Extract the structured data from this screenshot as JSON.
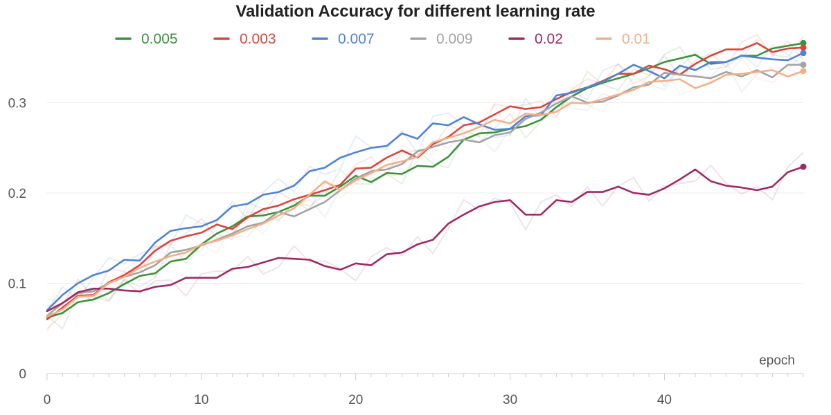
{
  "chart_data": {
    "type": "line",
    "title": "Validation Accuracy for different learning rate",
    "xlabel": "epoch",
    "ylabel": "",
    "xlim": [
      0,
      49
    ],
    "ylim": [
      0,
      0.38
    ],
    "x_ticks": [
      0,
      10,
      20,
      30,
      40
    ],
    "x_tick_labels": [
      "0",
      "10",
      "20",
      "30",
      "40"
    ],
    "y_ticks": [
      0,
      0.1,
      0.2,
      0.3
    ],
    "y_tick_labels": [
      "0",
      "0.1",
      "0.2",
      "0.3"
    ],
    "grid": true,
    "legend_position": "top-center",
    "x": [
      0,
      1,
      2,
      3,
      4,
      5,
      6,
      7,
      8,
      9,
      10,
      11,
      12,
      13,
      14,
      15,
      16,
      17,
      18,
      19,
      20,
      21,
      22,
      23,
      24,
      25,
      26,
      27,
      28,
      29,
      30,
      31,
      32,
      33,
      34,
      35,
      36,
      37,
      38,
      39,
      40,
      41,
      42,
      43,
      44,
      45,
      46,
      47,
      48,
      49
    ],
    "series": [
      {
        "name": "0.005",
        "color": "#3a923a",
        "values": [
          0.062,
          0.067,
          0.079,
          0.082,
          0.089,
          0.099,
          0.108,
          0.111,
          0.124,
          0.127,
          0.143,
          0.155,
          0.163,
          0.174,
          0.175,
          0.179,
          0.186,
          0.197,
          0.197,
          0.207,
          0.219,
          0.212,
          0.222,
          0.221,
          0.23,
          0.229,
          0.24,
          0.259,
          0.266,
          0.267,
          0.271,
          0.274,
          0.281,
          0.295,
          0.307,
          0.316,
          0.322,
          0.327,
          0.332,
          0.338,
          0.345,
          0.349,
          0.353,
          0.343,
          0.345,
          0.352,
          0.352,
          0.36,
          0.363,
          0.366
        ]
      },
      {
        "name": "0.003",
        "color": "#d9453d",
        "values": [
          0.06,
          0.073,
          0.086,
          0.087,
          0.101,
          0.109,
          0.12,
          0.136,
          0.147,
          0.152,
          0.156,
          0.165,
          0.16,
          0.173,
          0.182,
          0.186,
          0.193,
          0.198,
          0.203,
          0.209,
          0.227,
          0.228,
          0.239,
          0.247,
          0.239,
          0.254,
          0.262,
          0.275,
          0.278,
          0.287,
          0.296,
          0.293,
          0.295,
          0.304,
          0.312,
          0.317,
          0.324,
          0.332,
          0.332,
          0.341,
          0.337,
          0.331,
          0.343,
          0.352,
          0.359,
          0.359,
          0.366,
          0.356,
          0.36,
          0.361
        ]
      },
      {
        "name": "0.007",
        "color": "#4f83d6",
        "values": [
          0.07,
          0.087,
          0.1,
          0.109,
          0.114,
          0.126,
          0.125,
          0.145,
          0.158,
          0.161,
          0.163,
          0.17,
          0.185,
          0.188,
          0.198,
          0.201,
          0.208,
          0.224,
          0.228,
          0.239,
          0.245,
          0.25,
          0.252,
          0.266,
          0.26,
          0.277,
          0.275,
          0.284,
          0.276,
          0.27,
          0.271,
          0.285,
          0.286,
          0.308,
          0.311,
          0.317,
          0.323,
          0.332,
          0.342,
          0.335,
          0.327,
          0.341,
          0.336,
          0.345,
          0.345,
          0.352,
          0.35,
          0.348,
          0.347,
          0.355
        ]
      },
      {
        "name": "0.009",
        "color": "#a3a3a3",
        "values": [
          0.064,
          0.078,
          0.089,
          0.091,
          0.1,
          0.107,
          0.112,
          0.12,
          0.134,
          0.137,
          0.142,
          0.148,
          0.155,
          0.163,
          0.167,
          0.179,
          0.174,
          0.182,
          0.19,
          0.203,
          0.216,
          0.224,
          0.226,
          0.232,
          0.246,
          0.251,
          0.256,
          0.259,
          0.256,
          0.264,
          0.267,
          0.282,
          0.289,
          0.299,
          0.307,
          0.3,
          0.301,
          0.308,
          0.317,
          0.32,
          0.333,
          0.331,
          0.329,
          0.327,
          0.334,
          0.329,
          0.336,
          0.328,
          0.342,
          0.342
        ]
      },
      {
        "name": "0.02",
        "color": "#9e2a63",
        "values": [
          0.069,
          0.078,
          0.09,
          0.094,
          0.094,
          0.092,
          0.091,
          0.096,
          0.098,
          0.106,
          0.106,
          0.106,
          0.116,
          0.118,
          0.123,
          0.128,
          0.127,
          0.126,
          0.119,
          0.115,
          0.122,
          0.12,
          0.132,
          0.134,
          0.143,
          0.148,
          0.166,
          0.176,
          0.185,
          0.19,
          0.192,
          0.176,
          0.176,
          0.192,
          0.19,
          0.201,
          0.201,
          0.207,
          0.2,
          0.198,
          0.205,
          0.215,
          0.226,
          0.213,
          0.208,
          0.206,
          0.203,
          0.207,
          0.223,
          0.229
        ]
      },
      {
        "name": "0.01",
        "color": "#f2b08a",
        "values": [
          0.063,
          0.071,
          0.085,
          0.086,
          0.1,
          0.107,
          0.117,
          0.124,
          0.13,
          0.134,
          0.143,
          0.147,
          0.153,
          0.16,
          0.166,
          0.175,
          0.183,
          0.198,
          0.213,
          0.203,
          0.214,
          0.222,
          0.231,
          0.235,
          0.24,
          0.256,
          0.261,
          0.266,
          0.273,
          0.281,
          0.277,
          0.288,
          0.286,
          0.29,
          0.3,
          0.299,
          0.304,
          0.309,
          0.314,
          0.323,
          0.324,
          0.326,
          0.316,
          0.322,
          0.331,
          0.332,
          0.334,
          0.336,
          0.329,
          0.335
        ]
      }
    ]
  }
}
